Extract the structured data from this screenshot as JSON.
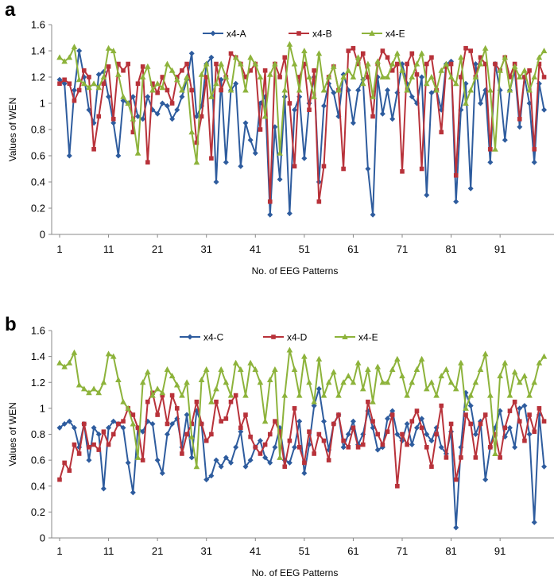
{
  "chart_data": [
    {
      "panel_label": "a",
      "type": "line",
      "xlabel": "No. of EEG Patterns",
      "ylabel": "Values of WEN",
      "x_ticks": [
        1,
        11,
        21,
        31,
        41,
        51,
        61,
        71,
        81,
        91
      ],
      "y_ticks": [
        "0",
        "0.2",
        "0.4",
        "0.6",
        "0.8",
        "1",
        "1.2",
        "1.4",
        "1.6"
      ],
      "ylim": [
        0,
        1.6
      ],
      "xlim": [
        1,
        100
      ],
      "grid": false,
      "legend_position": "top-center",
      "series": [
        {
          "name": "x4-A",
          "color": "#2e5c9e",
          "marker": "diamond",
          "values": [
            1.18,
            1.15,
            0.6,
            1.1,
            1.4,
            1.2,
            0.95,
            0.85,
            1.22,
            1.24,
            1.05,
            0.85,
            0.6,
            1.02,
            1.0,
            1.05,
            0.9,
            0.88,
            1.05,
            0.95,
            0.92,
            1.0,
            0.98,
            0.88,
            0.95,
            1.05,
            1.18,
            1.38,
            0.9,
            0.98,
            1.3,
            1.35,
            0.4,
            1.18,
            0.55,
            1.1,
            1.15,
            0.52,
            0.85,
            0.72,
            0.62,
            1.0,
            1.05,
            0.15,
            0.82,
            0.42,
            1.05,
            0.16,
            0.95,
            1.05,
            0.58,
            1.0,
            1.2,
            0.4,
            0.98,
            1.15,
            1.08,
            0.9,
            1.22,
            1.1,
            0.85,
            1.1,
            1.18,
            0.5,
            0.15,
            1.2,
            0.92,
            1.1,
            0.88,
            1.08,
            1.3,
            1.15,
            1.05,
            1.0,
            1.2,
            0.3,
            1.08,
            1.1,
            0.95,
            1.3,
            1.32,
            0.25,
            0.95,
            1.15,
            0.35,
            1.3,
            1.0,
            1.1,
            0.55,
            1.3,
            1.1,
            0.72,
            1.1,
            1.25,
            0.82,
            1.2,
            1.0,
            0.55,
            1.15,
            0.95
          ]
        },
        {
          "name": "x4-B",
          "color": "#b8323a",
          "marker": "square",
          "values": [
            1.15,
            1.18,
            1.15,
            1.02,
            1.1,
            1.25,
            1.2,
            0.65,
            0.9,
            1.15,
            1.28,
            0.88,
            1.3,
            1.25,
            1.3,
            0.78,
            1.15,
            1.28,
            0.55,
            1.15,
            1.08,
            1.2,
            1.1,
            1.0,
            1.2,
            1.25,
            1.3,
            1.1,
            0.7,
            0.9,
            1.2,
            0.58,
            1.3,
            1.1,
            1.2,
            1.38,
            1.35,
            1.3,
            1.2,
            1.25,
            1.3,
            0.8,
            1.25,
            0.25,
            1.3,
            1.2,
            1.35,
            1.0,
            0.52,
            1.2,
            1.3,
            0.95,
            1.25,
            0.25,
            0.52,
            1.2,
            1.28,
            1.1,
            0.5,
            1.4,
            1.42,
            1.3,
            1.38,
            1.2,
            0.9,
            1.3,
            1.4,
            1.35,
            1.25,
            1.3,
            0.48,
            1.3,
            1.38,
            1.22,
            0.5,
            1.3,
            1.35,
            1.1,
            0.78,
            1.28,
            1.3,
            0.45,
            1.2,
            1.42,
            1.4,
            1.2,
            1.35,
            1.3,
            0.65,
            1.3,
            1.25,
            1.35,
            1.2,
            1.3,
            0.88,
            1.2,
            1.25,
            0.65,
            1.3,
            1.2
          ]
        },
        {
          "name": "x4-E",
          "color": "#8db33b",
          "marker": "triangle",
          "values": [
            1.35,
            1.32,
            1.35,
            1.43,
            1.18,
            1.15,
            1.12,
            1.15,
            1.12,
            1.2,
            1.42,
            1.4,
            1.22,
            1.05,
            1.0,
            0.88,
            0.62,
            1.2,
            1.28,
            1.1,
            1.15,
            1.12,
            1.3,
            1.25,
            1.18,
            1.1,
            1.2,
            0.78,
            0.55,
            1.22,
            1.3,
            1.05,
            1.15,
            1.3,
            1.2,
            1.1,
            1.35,
            1.3,
            1.1,
            1.35,
            1.3,
            1.2,
            0.9,
            1.22,
            1.3,
            0.62,
            1.1,
            1.45,
            1.3,
            1.1,
            1.4,
            1.2,
            1.05,
            1.38,
            1.1,
            1.2,
            1.28,
            1.1,
            1.2,
            1.25,
            1.2,
            1.35,
            1.15,
            1.3,
            1.05,
            1.32,
            1.2,
            1.2,
            1.3,
            1.38,
            1.25,
            1.1,
            1.2,
            1.3,
            1.38,
            1.15,
            1.2,
            1.1,
            1.25,
            1.3,
            1.2,
            1.15,
            1.35,
            1.0,
            1.1,
            1.2,
            1.3,
            1.42,
            1.1,
            0.65,
            1.25,
            1.35,
            1.1,
            1.28,
            1.2,
            1.25,
            1.1,
            1.2,
            1.35,
            1.4
          ]
        }
      ]
    },
    {
      "panel_label": "b",
      "type": "line",
      "xlabel": "No. of EEG Patterns",
      "ylabel": "Values of WEN",
      "x_ticks": [
        1,
        11,
        21,
        31,
        41,
        51,
        61,
        71,
        81,
        91
      ],
      "y_ticks": [
        "0",
        "0.2",
        "0.4",
        "0.6",
        "0.8",
        "1",
        "1.2",
        "1.4",
        "1.6"
      ],
      "ylim": [
        0,
        1.6
      ],
      "xlim": [
        1,
        100
      ],
      "grid": false,
      "legend_position": "top-center",
      "series": [
        {
          "name": "x4-C",
          "color": "#2e5c9e",
          "marker": "diamond",
          "values": [
            0.85,
            0.88,
            0.9,
            0.85,
            0.7,
            0.88,
            0.6,
            0.85,
            0.8,
            0.38,
            0.85,
            0.9,
            0.88,
            0.85,
            0.58,
            0.35,
            0.85,
            0.82,
            0.9,
            0.88,
            0.6,
            0.5,
            0.8,
            0.88,
            0.92,
            0.7,
            0.95,
            0.62,
            0.98,
            0.88,
            0.45,
            0.48,
            0.6,
            0.55,
            0.62,
            0.58,
            0.7,
            0.82,
            0.55,
            0.6,
            0.7,
            0.75,
            0.62,
            0.58,
            0.7,
            0.85,
            0.6,
            0.58,
            0.7,
            0.9,
            0.5,
            0.72,
            1.02,
            1.15,
            0.9,
            0.68,
            0.88,
            0.95,
            0.7,
            0.8,
            0.9,
            0.72,
            0.8,
            0.98,
            0.85,
            0.68,
            0.7,
            0.92,
            0.98,
            0.8,
            0.75,
            0.88,
            0.72,
            0.85,
            0.92,
            0.8,
            0.75,
            0.85,
            0.7,
            0.65,
            0.82,
            0.08,
            0.7,
            1.12,
            1.02,
            0.8,
            0.9,
            0.45,
            0.7,
            0.85,
            0.98,
            0.78,
            0.85,
            0.7,
            1.0,
            1.02,
            0.8,
            0.12,
            0.95,
            0.55
          ]
        },
        {
          "name": "x4-D",
          "color": "#b8323a",
          "marker": "square",
          "values": [
            0.45,
            0.58,
            0.52,
            0.72,
            0.65,
            0.88,
            0.7,
            0.72,
            0.68,
            0.82,
            0.72,
            0.8,
            0.88,
            0.9,
            1.0,
            0.95,
            0.85,
            0.6,
            1.05,
            1.12,
            0.95,
            1.1,
            0.88,
            1.1,
            1.0,
            0.65,
            0.8,
            0.88,
            1.05,
            0.88,
            0.75,
            0.8,
            1.05,
            0.9,
            0.92,
            1.05,
            1.1,
            0.85,
            0.95,
            0.78,
            0.7,
            0.65,
            0.72,
            0.8,
            0.9,
            0.82,
            0.55,
            0.75,
            1.0,
            0.7,
            0.58,
            0.82,
            0.65,
            0.8,
            0.75,
            0.6,
            0.88,
            0.95,
            0.75,
            0.7,
            0.85,
            0.7,
            0.72,
            1.05,
            0.9,
            0.8,
            0.72,
            0.82,
            0.95,
            0.4,
            0.8,
            0.72,
            0.9,
            0.98,
            0.85,
            0.7,
            0.55,
            0.8,
            1.02,
            0.62,
            0.88,
            0.45,
            0.62,
            0.95,
            0.88,
            0.62,
            0.88,
            0.95,
            0.7,
            0.8,
            0.62,
            0.85,
            0.98,
            1.05,
            0.9,
            0.75,
            0.95,
            0.82,
            1.0,
            0.9
          ]
        },
        {
          "name": "x4-E",
          "color": "#8db33b",
          "marker": "triangle",
          "values": [
            1.35,
            1.32,
            1.35,
            1.43,
            1.18,
            1.15,
            1.12,
            1.15,
            1.12,
            1.2,
            1.42,
            1.4,
            1.22,
            1.05,
            1.0,
            0.88,
            0.62,
            1.2,
            1.28,
            1.1,
            1.15,
            1.12,
            1.3,
            1.25,
            1.18,
            1.1,
            1.2,
            0.78,
            0.55,
            1.22,
            1.3,
            1.05,
            1.15,
            1.3,
            1.2,
            1.1,
            1.35,
            1.3,
            1.1,
            1.35,
            1.3,
            1.2,
            0.9,
            1.22,
            1.3,
            0.62,
            1.1,
            1.45,
            1.3,
            1.1,
            1.4,
            1.2,
            1.05,
            1.38,
            1.1,
            1.2,
            1.28,
            1.1,
            1.2,
            1.25,
            1.2,
            1.35,
            1.15,
            1.3,
            1.05,
            1.32,
            1.2,
            1.2,
            1.3,
            1.38,
            1.25,
            1.1,
            1.2,
            1.3,
            1.38,
            1.15,
            1.2,
            1.1,
            1.25,
            1.3,
            1.2,
            1.15,
            1.35,
            1.0,
            1.1,
            1.2,
            1.3,
            1.42,
            1.1,
            0.65,
            1.25,
            1.35,
            1.1,
            1.28,
            1.2,
            1.25,
            1.1,
            1.2,
            1.35,
            1.4
          ]
        }
      ]
    }
  ]
}
